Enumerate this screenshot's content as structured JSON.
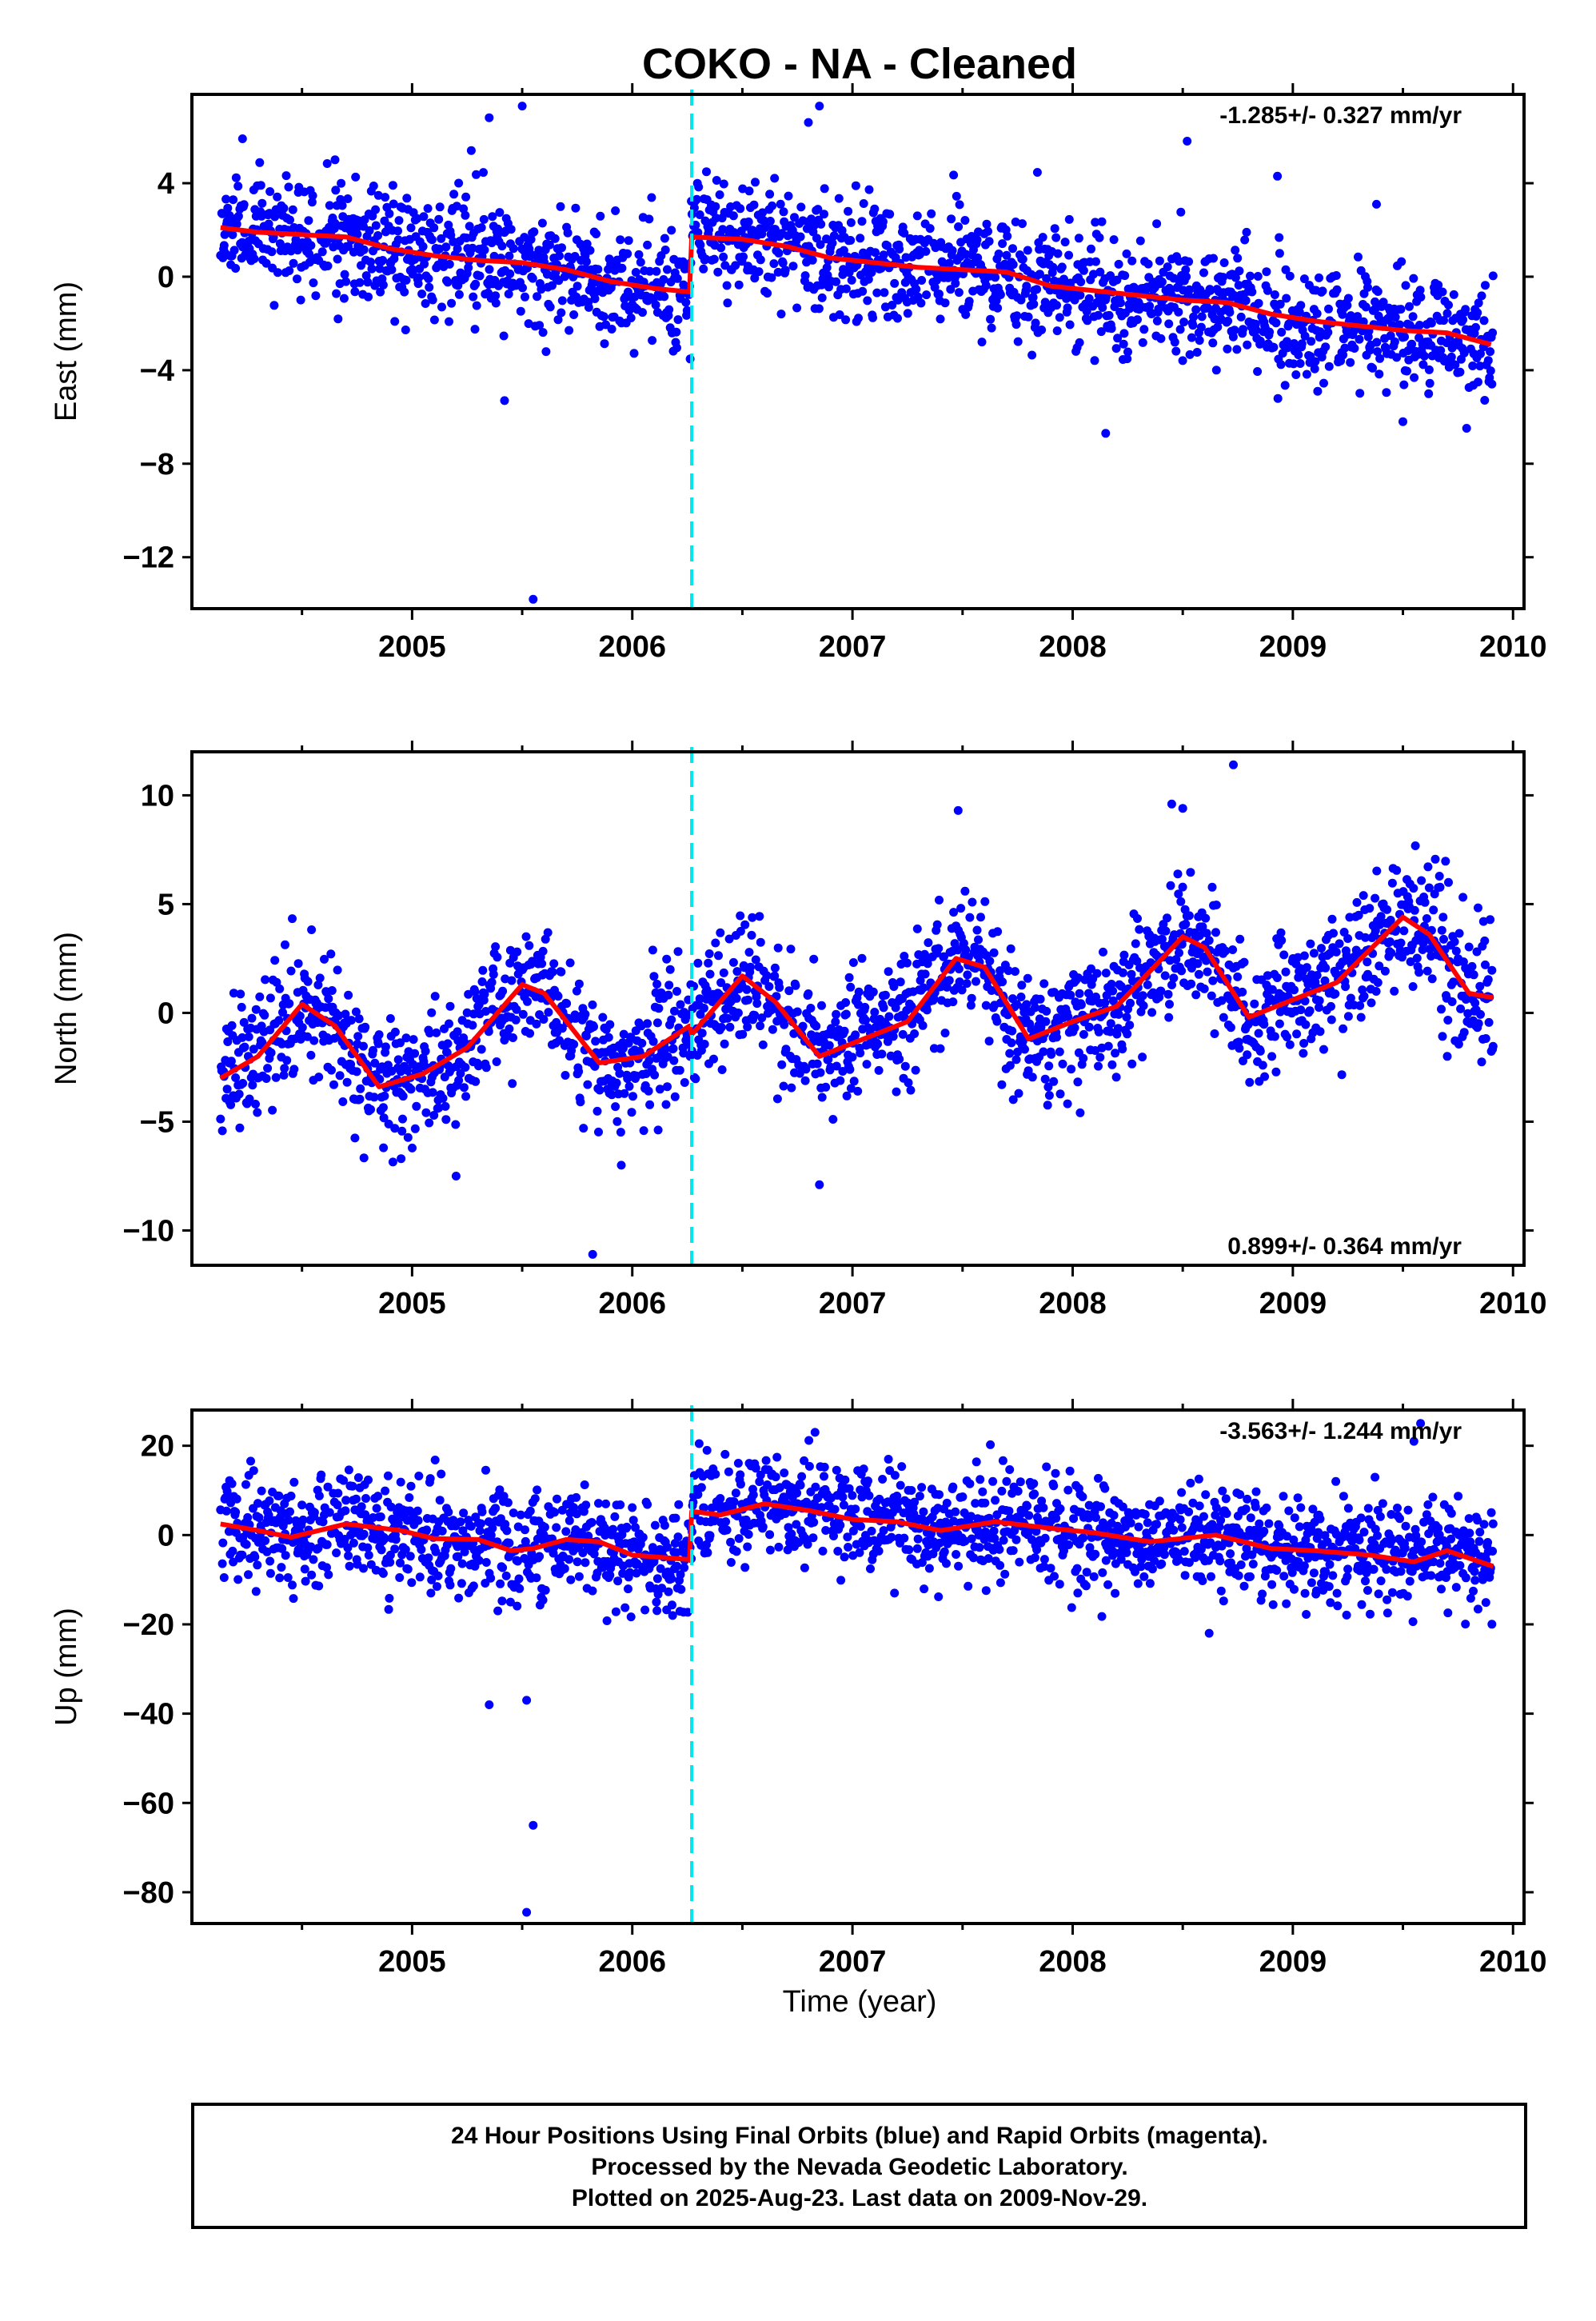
{
  "title": "COKO  - NA - Cleaned",
  "xlabel": "Time (year)",
  "x_ticks": [
    "2005",
    "2006",
    "2007",
    "2008",
    "2009",
    "2010"
  ],
  "footer": {
    "line1": "24 Hour Positions Using Final Orbits (blue) and Rapid Orbits (magenta).",
    "line2": "Processed by the Nevada Geodetic Laboratory.",
    "line3": "Plotted on 2025-Aug-23. Last data on 2009-Nov-29."
  },
  "colors": {
    "data": "#0000ff",
    "model": "#ff0000",
    "offset": "#00e5ee"
  },
  "chart_data": [
    {
      "type": "scatter",
      "ylabel": "East (mm)",
      "xlim": [
        2004.0,
        2010.05
      ],
      "ylim": [
        -14.2,
        7.8
      ],
      "yticks": [
        4,
        0,
        -4,
        -8,
        -12
      ],
      "ytick_labels": [
        "4",
        "0",
        "−4",
        "−8",
        "−12"
      ],
      "rate": "-1.285+/- 0.327 mm/yr",
      "rate_position": "top-right",
      "offset_x": 2006.27,
      "model": [
        [
          2004.13,
          2.1
        ],
        [
          2004.3,
          1.9
        ],
        [
          2004.5,
          1.8
        ],
        [
          2004.7,
          1.7
        ],
        [
          2004.9,
          1.2
        ],
        [
          2005.1,
          0.9
        ],
        [
          2005.3,
          0.7
        ],
        [
          2005.5,
          0.6
        ],
        [
          2005.7,
          0.3
        ],
        [
          2005.9,
          -0.2
        ],
        [
          2006.1,
          -0.5
        ],
        [
          2006.26,
          -0.65
        ],
        [
          2006.27,
          1.7
        ],
        [
          2006.5,
          1.6
        ],
        [
          2006.7,
          1.3
        ],
        [
          2006.9,
          0.8
        ],
        [
          2007.1,
          0.6
        ],
        [
          2007.3,
          0.4
        ],
        [
          2007.5,
          0.3
        ],
        [
          2007.7,
          0.2
        ],
        [
          2007.9,
          -0.4
        ],
        [
          2008.1,
          -0.6
        ],
        [
          2008.3,
          -0.8
        ],
        [
          2008.5,
          -1.0
        ],
        [
          2008.7,
          -1.1
        ],
        [
          2008.9,
          -1.6
        ],
        [
          2009.1,
          -1.9
        ],
        [
          2009.3,
          -2.1
        ],
        [
          2009.5,
          -2.3
        ],
        [
          2009.7,
          -2.4
        ],
        [
          2009.9,
          -2.9
        ]
      ],
      "noise": {
        "sd": 1.25,
        "seed": 11
      },
      "outliers": [
        [
          2005.35,
          6.8
        ],
        [
          2005.5,
          7.3
        ],
        [
          2005.55,
          -13.8
        ],
        [
          2006.8,
          6.6
        ],
        [
          2006.85,
          7.3
        ],
        [
          2008.52,
          5.8
        ],
        [
          2008.93,
          4.3
        ],
        [
          2009.38,
          3.1
        ],
        [
          2005.42,
          -5.3
        ],
        [
          2008.15,
          -6.7
        ],
        [
          2009.5,
          -6.2
        ],
        [
          2004.23,
          5.9
        ],
        [
          2004.65,
          5.0
        ]
      ],
      "data_range": [
        2004.13,
        2009.91
      ]
    },
    {
      "type": "scatter",
      "ylabel": "North (mm)",
      "xlim": [
        2004.0,
        2010.05
      ],
      "ylim": [
        -11.6,
        12.0
      ],
      "yticks": [
        10,
        5,
        0,
        -5,
        -10
      ],
      "ytick_labels": [
        "10",
        "5",
        "0",
        "−5",
        "−10"
      ],
      "rate": "0.899+/- 0.364 mm/yr",
      "rate_position": "bottom-right",
      "offset_x": 2006.27,
      "model": [
        [
          2004.13,
          -3.0
        ],
        [
          2004.3,
          -2.0
        ],
        [
          2004.5,
          0.4
        ],
        [
          2004.65,
          -0.6
        ],
        [
          2004.85,
          -3.4
        ],
        [
          2005.05,
          -2.8
        ],
        [
          2005.25,
          -1.6
        ],
        [
          2005.5,
          1.3
        ],
        [
          2005.6,
          0.9
        ],
        [
          2005.85,
          -2.3
        ],
        [
          2006.05,
          -2.0
        ],
        [
          2006.26,
          -0.6
        ],
        [
          2006.27,
          -1.0
        ],
        [
          2006.5,
          1.7
        ],
        [
          2006.65,
          0.5
        ],
        [
          2006.85,
          -2.0
        ],
        [
          2007.05,
          -1.2
        ],
        [
          2007.25,
          -0.4
        ],
        [
          2007.47,
          2.5
        ],
        [
          2007.6,
          2.1
        ],
        [
          2007.8,
          -1.2
        ],
        [
          2008.0,
          -0.4
        ],
        [
          2008.2,
          0.3
        ],
        [
          2008.5,
          3.5
        ],
        [
          2008.6,
          3.0
        ],
        [
          2008.8,
          -0.2
        ],
        [
          2009.0,
          0.6
        ],
        [
          2009.2,
          1.4
        ],
        [
          2009.5,
          4.4
        ],
        [
          2009.62,
          3.6
        ],
        [
          2009.8,
          0.9
        ],
        [
          2009.91,
          0.7
        ]
      ],
      "noise": {
        "sd": 1.45,
        "seed": 23
      },
      "outliers": [
        [
          2008.73,
          11.4
        ],
        [
          2008.45,
          9.6
        ],
        [
          2008.5,
          9.4
        ],
        [
          2007.48,
          9.3
        ],
        [
          2005.82,
          -11.1
        ],
        [
          2006.85,
          -7.9
        ],
        [
          2005.2,
          -7.5
        ],
        [
          2005.95,
          -7.0
        ],
        [
          2004.95,
          -6.7
        ],
        [
          2004.87,
          -6.2
        ]
      ],
      "data_range": [
        2004.13,
        2009.91
      ]
    },
    {
      "type": "scatter",
      "ylabel": "Up (mm)",
      "xlim": [
        2004.0,
        2010.05
      ],
      "ylim": [
        -87,
        28
      ],
      "yticks": [
        20,
        0,
        -20,
        -40,
        -60,
        -80
      ],
      "ytick_labels": [
        "20",
        "0",
        "−20",
        "−40",
        "−60",
        "−80"
      ],
      "rate": "-3.563+/- 1.244 mm/yr",
      "rate_position": "top-right",
      "offset_x": 2006.27,
      "model": [
        [
          2004.13,
          2.5
        ],
        [
          2004.3,
          1.0
        ],
        [
          2004.45,
          -0.5
        ],
        [
          2004.7,
          2.5
        ],
        [
          2004.95,
          1.0
        ],
        [
          2005.1,
          -0.8
        ],
        [
          2005.3,
          -1.0
        ],
        [
          2005.45,
          -3.5
        ],
        [
          2005.55,
          -3.0
        ],
        [
          2005.7,
          -1.0
        ],
        [
          2005.85,
          -1.5
        ],
        [
          2006.0,
          -4.5
        ],
        [
          2006.26,
          -5.5
        ],
        [
          2006.27,
          5.3
        ],
        [
          2006.4,
          4.5
        ],
        [
          2006.6,
          7.0
        ],
        [
          2006.8,
          5.5
        ],
        [
          2007.0,
          3.5
        ],
        [
          2007.2,
          3.0
        ],
        [
          2007.4,
          1.0
        ],
        [
          2007.65,
          3.0
        ],
        [
          2007.9,
          1.5
        ],
        [
          2008.1,
          0.5
        ],
        [
          2008.35,
          -1.5
        ],
        [
          2008.65,
          0.0
        ],
        [
          2008.9,
          -3.0
        ],
        [
          2009.1,
          -3.5
        ],
        [
          2009.35,
          -4.5
        ],
        [
          2009.55,
          -6.0
        ],
        [
          2009.7,
          -3.5
        ],
        [
          2009.91,
          -7.0
        ]
      ],
      "noise": {
        "sd": 5.8,
        "seed": 37
      },
      "outliers": [
        [
          2005.55,
          -65
        ],
        [
          2005.52,
          -84.5
        ],
        [
          2009.58,
          25
        ],
        [
          2009.55,
          21
        ],
        [
          2006.83,
          23
        ],
        [
          2008.62,
          -22
        ],
        [
          2005.35,
          -38
        ],
        [
          2005.52,
          -37
        ]
      ],
      "data_range": [
        2004.13,
        2009.91
      ]
    }
  ]
}
